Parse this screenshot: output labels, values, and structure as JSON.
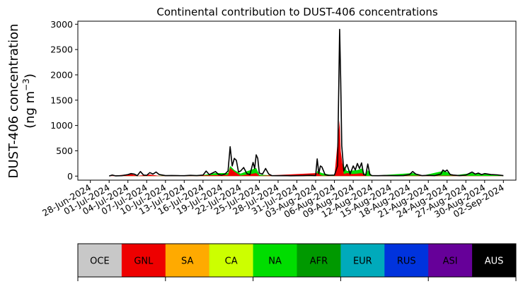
{
  "chart_data": {
    "type": "area",
    "title": "Continental contribution to DUST-406 concentrations",
    "ylabel_line1": "DUST-406 concentration",
    "ylabel_unit_base": "(ng m",
    "ylabel_unit_exp": "−3",
    "ylabel_unit_close": ")",
    "ylim": [
      -80,
      3060
    ],
    "yticks": [
      0,
      500,
      1000,
      1500,
      2000,
      2500,
      3000
    ],
    "xlim": [
      "2024-06-26",
      "2024-09-04"
    ],
    "xtick_labels": [
      "28-Jun-2024",
      "01-Jul-2024",
      "04-Jul-2024",
      "07-Jul-2024",
      "10-Jul-2024",
      "13-Jul-2024",
      "16-Jul-2024",
      "19-Jul-2024",
      "22-Jul-2024",
      "25-Jul-2024",
      "28-Jul-2024",
      "31-Jul-2024",
      "03-Aug-2024",
      "06-Aug-2024",
      "09-Aug-2024",
      "12-Aug-2024",
      "15-Aug-2024",
      "18-Aug-2024",
      "21-Aug-2024",
      "24-Aug-2024",
      "27-Aug-2024",
      "30-Aug-2024",
      "02-Sep-2024"
    ],
    "xtick_dates": [
      "2024-06-28",
      "2024-07-01",
      "2024-07-04",
      "2024-07-07",
      "2024-07-10",
      "2024-07-13",
      "2024-07-16",
      "2024-07-19",
      "2024-07-22",
      "2024-07-25",
      "2024-07-28",
      "2024-07-31",
      "2024-08-03",
      "2024-08-06",
      "2024-08-09",
      "2024-08-12",
      "2024-08-15",
      "2024-08-18",
      "2024-08-21",
      "2024-08-24",
      "2024-08-27",
      "2024-08-30",
      "2024-09-02"
    ],
    "grid": false,
    "total": {
      "name": "Total",
      "color": "#000000",
      "points": [
        [
          "2024-07-01",
          2
        ],
        [
          "2024-07-01T12",
          20
        ],
        [
          "2024-07-02",
          5
        ],
        [
          "2024-07-03",
          8
        ],
        [
          "2024-07-04",
          30
        ],
        [
          "2024-07-04T12",
          50
        ],
        [
          "2024-07-05",
          40
        ],
        [
          "2024-07-05T12",
          10
        ],
        [
          "2024-07-06",
          90
        ],
        [
          "2024-07-06T12",
          20
        ],
        [
          "2024-07-07",
          15
        ],
        [
          "2024-07-07T12",
          70
        ],
        [
          "2024-07-08",
          40
        ],
        [
          "2024-07-08T12",
          80
        ],
        [
          "2024-07-09",
          30
        ],
        [
          "2024-07-10",
          10
        ],
        [
          "2024-07-11",
          12
        ],
        [
          "2024-07-12",
          10
        ],
        [
          "2024-07-13",
          8
        ],
        [
          "2024-07-14",
          15
        ],
        [
          "2024-07-15",
          10
        ],
        [
          "2024-07-16",
          20
        ],
        [
          "2024-07-16T12",
          100
        ],
        [
          "2024-07-17",
          30
        ],
        [
          "2024-07-17T12",
          60
        ],
        [
          "2024-07-18",
          90
        ],
        [
          "2024-07-18T12",
          30
        ],
        [
          "2024-07-19",
          20
        ],
        [
          "2024-07-19T12",
          40
        ],
        [
          "2024-07-20",
          100
        ],
        [
          "2024-07-20T08",
          580
        ],
        [
          "2024-07-20T16",
          200
        ],
        [
          "2024-07-21",
          350
        ],
        [
          "2024-07-21T08",
          310
        ],
        [
          "2024-07-21T16",
          80
        ],
        [
          "2024-07-22",
          100
        ],
        [
          "2024-07-22T12",
          170
        ],
        [
          "2024-07-23",
          50
        ],
        [
          "2024-07-23T12",
          30
        ],
        [
          "2024-07-24",
          270
        ],
        [
          "2024-07-24T06",
          150
        ],
        [
          "2024-07-24T12",
          420
        ],
        [
          "2024-07-24T18",
          350
        ],
        [
          "2024-07-25",
          60
        ],
        [
          "2024-07-25T12",
          40
        ],
        [
          "2024-07-26",
          150
        ],
        [
          "2024-07-26T12",
          40
        ],
        [
          "2024-07-27",
          10
        ],
        [
          "2024-07-28",
          8
        ],
        [
          "2024-07-29",
          10
        ],
        [
          "2024-07-30",
          6
        ],
        [
          "2024-07-31",
          8
        ],
        [
          "2024-08-01",
          10
        ],
        [
          "2024-08-02",
          15
        ],
        [
          "2024-08-03",
          10
        ],
        [
          "2024-08-03T06",
          340
        ],
        [
          "2024-08-03T12",
          50
        ],
        [
          "2024-08-03T18",
          200
        ],
        [
          "2024-08-04",
          180
        ],
        [
          "2024-08-04T12",
          30
        ],
        [
          "2024-08-05",
          15
        ],
        [
          "2024-08-06",
          20
        ],
        [
          "2024-08-06T12",
          200
        ],
        [
          "2024-08-06T20",
          2900
        ],
        [
          "2024-08-07",
          1900
        ],
        [
          "2024-08-07T04",
          600
        ],
        [
          "2024-08-07T12",
          100
        ],
        [
          "2024-08-08",
          230
        ],
        [
          "2024-08-08T12",
          40
        ],
        [
          "2024-08-09",
          200
        ],
        [
          "2024-08-09T08",
          120
        ],
        [
          "2024-08-09T16",
          250
        ],
        [
          "2024-08-10",
          150
        ],
        [
          "2024-08-10T08",
          260
        ],
        [
          "2024-08-10T16",
          30
        ],
        [
          "2024-08-11",
          20
        ],
        [
          "2024-08-11T08",
          240
        ],
        [
          "2024-08-11T16",
          30
        ],
        [
          "2024-08-12",
          10
        ],
        [
          "2024-08-13",
          8
        ],
        [
          "2024-08-14",
          12
        ],
        [
          "2024-08-15",
          10
        ],
        [
          "2024-08-16",
          8
        ],
        [
          "2024-08-17",
          10
        ],
        [
          "2024-08-18",
          30
        ],
        [
          "2024-08-18T12",
          90
        ],
        [
          "2024-08-19",
          40
        ],
        [
          "2024-08-20",
          10
        ],
        [
          "2024-08-21",
          15
        ],
        [
          "2024-08-22",
          10
        ],
        [
          "2024-08-23",
          40
        ],
        [
          "2024-08-23T08",
          120
        ],
        [
          "2024-08-23T16",
          90
        ],
        [
          "2024-08-24",
          120
        ],
        [
          "2024-08-24T12",
          30
        ],
        [
          "2024-08-25",
          20
        ],
        [
          "2024-08-26",
          10
        ],
        [
          "2024-08-27",
          20
        ],
        [
          "2024-08-28",
          80
        ],
        [
          "2024-08-28T12",
          40
        ],
        [
          "2024-08-29",
          60
        ],
        [
          "2024-08-29T12",
          30
        ],
        [
          "2024-08-30",
          50
        ],
        [
          "2024-08-31",
          30
        ],
        [
          "2024-09-01",
          25
        ],
        [
          "2024-09-02",
          10
        ]
      ]
    },
    "fills": [
      {
        "name": "NA",
        "color": "#00DD00",
        "points": [
          [
            "2024-07-01",
            0
          ],
          [
            "2024-07-10",
            10
          ],
          [
            "2024-07-16",
            20
          ],
          [
            "2024-07-18",
            60
          ],
          [
            "2024-07-20",
            60
          ],
          [
            "2024-07-20T08",
            200
          ],
          [
            "2024-07-21",
            120
          ],
          [
            "2024-07-22",
            50
          ],
          [
            "2024-07-24T12",
            160
          ],
          [
            "2024-07-25",
            30
          ],
          [
            "2024-07-28",
            5
          ],
          [
            "2024-08-03",
            5
          ],
          [
            "2024-08-03T06",
            100
          ],
          [
            "2024-08-04",
            60
          ],
          [
            "2024-08-06",
            10
          ],
          [
            "2024-08-06T20",
            600
          ],
          [
            "2024-08-07",
            300
          ],
          [
            "2024-08-08",
            100
          ],
          [
            "2024-08-09T16",
            120
          ],
          [
            "2024-08-10T08",
            150
          ],
          [
            "2024-08-11",
            15
          ],
          [
            "2024-08-11T08",
            120
          ],
          [
            "2024-08-12",
            5
          ],
          [
            "2024-08-18T12",
            60
          ],
          [
            "2024-08-20",
            10
          ],
          [
            "2024-08-23T08",
            100
          ],
          [
            "2024-08-24",
            80
          ],
          [
            "2024-08-25",
            15
          ],
          [
            "2024-08-28",
            60
          ],
          [
            "2024-08-29",
            45
          ],
          [
            "2024-08-30",
            40
          ],
          [
            "2024-09-02",
            8
          ]
        ]
      },
      {
        "name": "GNL",
        "color": "#EE0000",
        "points": [
          [
            "2024-07-01",
            0
          ],
          [
            "2024-07-04T12",
            40
          ],
          [
            "2024-07-05T12",
            5
          ],
          [
            "2024-07-07T12",
            30
          ],
          [
            "2024-07-09",
            5
          ],
          [
            "2024-07-20",
            20
          ],
          [
            "2024-07-20T08",
            160
          ],
          [
            "2024-07-21",
            90
          ],
          [
            "2024-07-22",
            10
          ],
          [
            "2024-07-24T12",
            60
          ],
          [
            "2024-07-25",
            5
          ],
          [
            "2024-08-03T06",
            60
          ],
          [
            "2024-08-04",
            10
          ],
          [
            "2024-08-06",
            5
          ],
          [
            "2024-08-06T20",
            1100
          ],
          [
            "2024-08-07",
            500
          ],
          [
            "2024-08-07T12",
            40
          ],
          [
            "2024-08-08",
            60
          ],
          [
            "2024-08-09",
            40
          ],
          [
            "2024-08-10T08",
            60
          ],
          [
            "2024-08-11",
            5
          ],
          [
            "2024-08-12",
            2
          ],
          [
            "2024-08-18T12",
            10
          ],
          [
            "2024-08-23T08",
            10
          ],
          [
            "2024-08-28",
            5
          ],
          [
            "2024-09-02",
            2
          ]
        ]
      }
    ],
    "legend": [
      {
        "label": "OCE",
        "color": "#C8C8C8",
        "text_color": "#000000"
      },
      {
        "label": "GNL",
        "color": "#EE0000",
        "text_color": "#000000"
      },
      {
        "label": "SA",
        "color": "#FFAA00",
        "text_color": "#000000"
      },
      {
        "label": "CA",
        "color": "#CCFF00",
        "text_color": "#000000"
      },
      {
        "label": "NA",
        "color": "#00DD00",
        "text_color": "#000000"
      },
      {
        "label": "AFR",
        "color": "#009900",
        "text_color": "#000000"
      },
      {
        "label": "EUR",
        "color": "#00AABB",
        "text_color": "#000000"
      },
      {
        "label": "RUS",
        "color": "#0033DD",
        "text_color": "#000000"
      },
      {
        "label": "ASI",
        "color": "#660099",
        "text_color": "#000000"
      },
      {
        "label": "AUS",
        "color": "#000000",
        "text_color": "#FFFFFF"
      }
    ]
  }
}
